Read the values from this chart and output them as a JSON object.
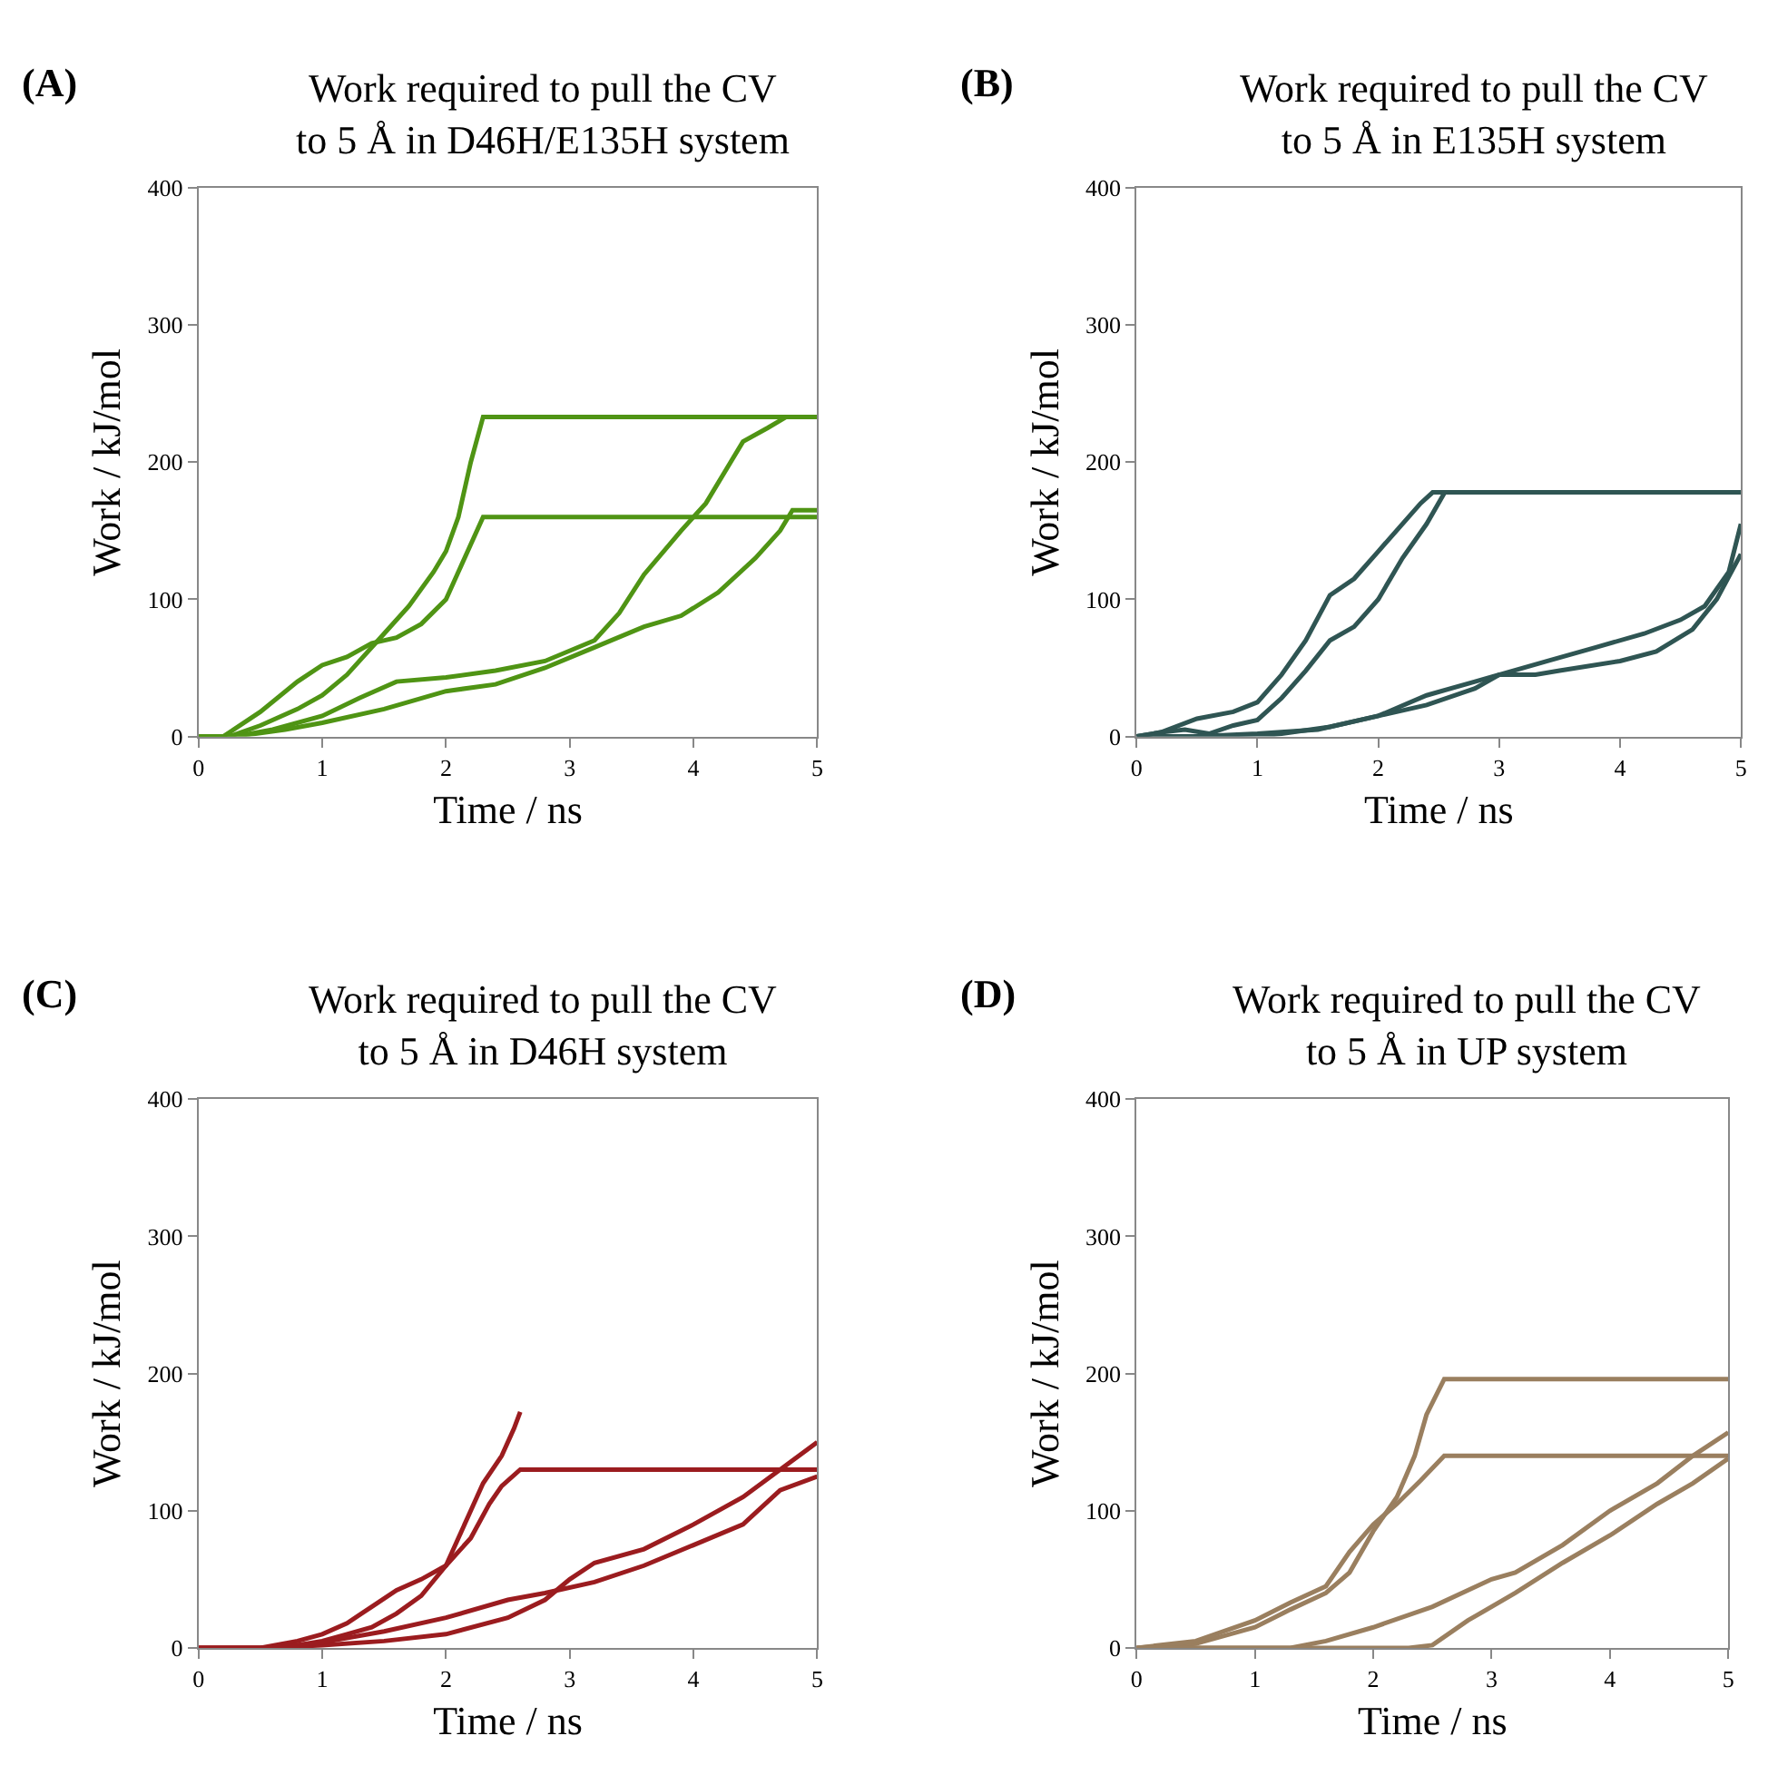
{
  "chart_data": [
    {
      "type": "line",
      "title": "Work required to pull the CV\nto 5 Å in D46H/E135H system",
      "annotations": [
        "(A)"
      ],
      "xlabel": "Time / ns",
      "ylabel": "Work / kJ/mol",
      "xlim": [
        0,
        5
      ],
      "ylim": [
        0,
        400
      ],
      "xticks": [
        0,
        1,
        2,
        3,
        4,
        5
      ],
      "yticks": [
        0,
        100,
        200,
        300,
        400
      ],
      "series": [
        {
          "color": "#4f9414",
          "x": [
            0,
            0.25,
            0.5,
            0.8,
            1,
            1.2,
            1.5,
            1.7,
            1.9,
            2.0,
            2.1,
            2.2,
            2.3,
            5
          ],
          "values": [
            0,
            0,
            8,
            20,
            30,
            45,
            75,
            95,
            120,
            135,
            160,
            200,
            233,
            233
          ]
        },
        {
          "color": "#4f9414",
          "x": [
            0,
            0.2,
            0.5,
            0.8,
            1,
            1.2,
            1.4,
            1.6,
            1.8,
            2.0,
            2.1,
            2.3,
            5
          ],
          "values": [
            0,
            0,
            18,
            40,
            52,
            58,
            68,
            72,
            82,
            100,
            120,
            160,
            160
          ]
        },
        {
          "color": "#4f9414",
          "x": [
            0,
            0.3,
            0.6,
            1,
            1.3,
            1.6,
            2,
            2.4,
            2.8,
            3.2,
            3.4,
            3.6,
            3.9,
            4.1,
            4.4,
            4.6,
            4.75,
            5
          ],
          "values": [
            0,
            0,
            5,
            15,
            28,
            40,
            43,
            48,
            55,
            70,
            90,
            118,
            150,
            170,
            215,
            225,
            233,
            233
          ]
        },
        {
          "color": "#4f9414",
          "x": [
            0,
            0.3,
            0.7,
            1,
            1.5,
            2,
            2.4,
            2.8,
            3.2,
            3.6,
            3.9,
            4.2,
            4.5,
            4.7,
            4.8,
            5
          ],
          "values": [
            0,
            0,
            5,
            10,
            20,
            33,
            38,
            50,
            65,
            80,
            88,
            105,
            130,
            150,
            165,
            165
          ]
        }
      ]
    },
    {
      "type": "line",
      "title": "Work required to pull the CV\nto 5 Å in E135H system",
      "annotations": [
        "(B)"
      ],
      "xlabel": "Time / ns",
      "ylabel": "Work / kJ/mol",
      "xlim": [
        0,
        5
      ],
      "ylim": [
        0,
        400
      ],
      "xticks": [
        0,
        1,
        2,
        3,
        4,
        5
      ],
      "yticks": [
        0,
        100,
        200,
        300,
        400
      ],
      "series": [
        {
          "color": "#2f5553",
          "x": [
            0,
            0.2,
            0.5,
            0.8,
            1,
            1.2,
            1.4,
            1.6,
            1.8,
            2.0,
            2.2,
            2.35,
            2.45,
            5
          ],
          "values": [
            0,
            3,
            13,
            18,
            25,
            45,
            70,
            103,
            115,
            135,
            155,
            170,
            178,
            178
          ]
        },
        {
          "color": "#2f5553",
          "x": [
            0,
            0.2,
            0.4,
            0.6,
            0.8,
            1,
            1.2,
            1.4,
            1.6,
            1.8,
            2.0,
            2.2,
            2.4,
            2.55,
            5
          ],
          "values": [
            0,
            3,
            5,
            2,
            8,
            12,
            28,
            48,
            70,
            80,
            100,
            130,
            155,
            178,
            178
          ]
        },
        {
          "color": "#2f5553",
          "x": [
            0,
            0.5,
            1,
            1.5,
            2,
            2.4,
            2.8,
            3,
            3.3,
            3.5,
            4,
            4.3,
            4.6,
            4.8,
            5
          ],
          "values": [
            0,
            0,
            2,
            5,
            15,
            30,
            40,
            45,
            45,
            48,
            55,
            62,
            78,
            100,
            133
          ]
        },
        {
          "color": "#2f5553",
          "x": [
            0,
            0.5,
            1,
            1.2,
            1.6,
            2,
            2.4,
            2.8,
            3,
            3.4,
            3.8,
            4.2,
            4.5,
            4.7,
            4.9,
            5
          ],
          "values": [
            0,
            0,
            0,
            2,
            7,
            15,
            23,
            35,
            45,
            55,
            65,
            75,
            85,
            95,
            120,
            155
          ]
        }
      ]
    },
    {
      "type": "line",
      "title": "Work required to pull the CV\nto 5 Å in D46H system",
      "annotations": [
        "(C)"
      ],
      "xlabel": "Time / ns",
      "ylabel": "Work / kJ/mol",
      "xlim": [
        0,
        5
      ],
      "ylim": [
        0,
        400
      ],
      "xticks": [
        0,
        1,
        2,
        3,
        4,
        5
      ],
      "yticks": [
        0,
        100,
        200,
        300,
        400
      ],
      "series": [
        {
          "color": "#9b1c1f",
          "x": [
            0,
            0.5,
            0.8,
            1,
            1.2,
            1.4,
            1.6,
            1.8,
            2.0,
            2.1,
            2.2,
            2.3,
            2.45,
            2.55,
            2.6
          ],
          "values": [
            0,
            0,
            2,
            5,
            10,
            15,
            25,
            38,
            60,
            80,
            100,
            120,
            140,
            160,
            172
          ]
        },
        {
          "color": "#9b1c1f",
          "x": [
            0,
            0.5,
            0.8,
            1,
            1.2,
            1.4,
            1.6,
            1.8,
            2.0,
            2.2,
            2.35,
            2.45,
            2.6,
            5
          ],
          "values": [
            0,
            0,
            5,
            10,
            18,
            30,
            42,
            50,
            60,
            80,
            105,
            118,
            130,
            130
          ]
        },
        {
          "color": "#9b1c1f",
          "x": [
            0,
            0.6,
            1,
            1.5,
            2,
            2.5,
            2.8,
            3,
            3.2,
            3.6,
            4,
            4.4,
            4.7,
            5
          ],
          "values": [
            0,
            0,
            2,
            5,
            10,
            22,
            35,
            50,
            62,
            72,
            90,
            110,
            130,
            150
          ]
        },
        {
          "color": "#9b1c1f",
          "x": [
            0,
            0.6,
            1,
            1.5,
            2,
            2.5,
            2.8,
            3.2,
            3.6,
            4,
            4.4,
            4.7,
            5
          ],
          "values": [
            0,
            0,
            4,
            12,
            22,
            35,
            40,
            48,
            60,
            75,
            90,
            115,
            125
          ]
        }
      ]
    },
    {
      "type": "line",
      "title": "Work required to pull the CV\nto 5 Å in UP system",
      "annotations": [
        "(D)"
      ],
      "xlabel": "Time / ns",
      "ylabel": "Work / kJ/mol",
      "xlim": [
        0,
        5
      ],
      "ylim": [
        0,
        400
      ],
      "xticks": [
        0,
        1,
        2,
        3,
        4,
        5
      ],
      "yticks": [
        0,
        100,
        200,
        300,
        400
      ],
      "series": [
        {
          "color": "#9a7f5f",
          "x": [
            0,
            0.5,
            1,
            1.3,
            1.6,
            1.8,
            2.0,
            2.2,
            2.35,
            2.45,
            2.6,
            5
          ],
          "values": [
            0,
            3,
            15,
            28,
            40,
            55,
            85,
            110,
            140,
            170,
            196,
            196
          ]
        },
        {
          "color": "#9a7f5f",
          "x": [
            0,
            0.5,
            1,
            1.3,
            1.6,
            1.8,
            2.0,
            2.2,
            2.4,
            2.6,
            5
          ],
          "values": [
            0,
            5,
            20,
            33,
            45,
            70,
            90,
            105,
            122,
            140,
            140
          ]
        },
        {
          "color": "#9a7f5f",
          "x": [
            0,
            1,
            1.3,
            1.6,
            2,
            2.5,
            3,
            3.2,
            3.6,
            4,
            4.4,
            4.7,
            5
          ],
          "values": [
            0,
            0,
            0,
            5,
            15,
            30,
            50,
            55,
            75,
            100,
            120,
            140,
            157
          ]
        },
        {
          "color": "#9a7f5f",
          "x": [
            0,
            2.3,
            2.5,
            2.8,
            3.2,
            3.6,
            4,
            4.4,
            4.7,
            5
          ],
          "values": [
            0,
            0,
            2,
            20,
            40,
            62,
            82,
            105,
            120,
            138
          ]
        }
      ]
    }
  ]
}
